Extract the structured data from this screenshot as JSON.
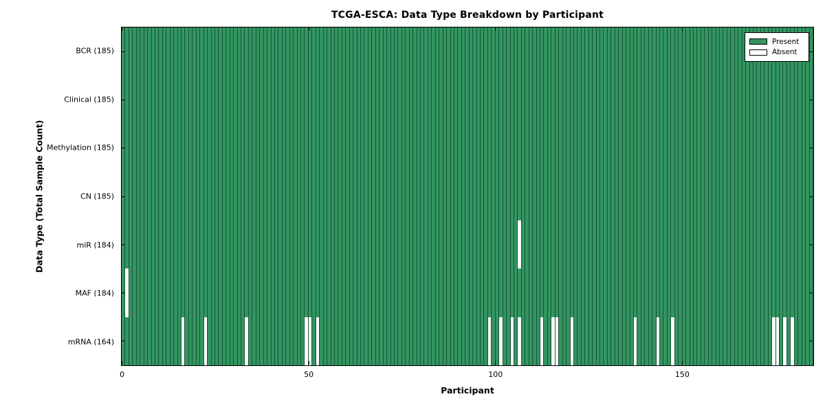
{
  "title": "TCGA-ESCA: Data Type Breakdown by Participant",
  "xlabel": "Participant",
  "ylabel": "Data Type (Total Sample Count)",
  "legend": {
    "present_label": "Present",
    "absent_label": "Absent"
  },
  "colors": {
    "present": "#339560",
    "absent": "#ffffff",
    "cell_border": "#175338",
    "frame": "#000000"
  },
  "chart_data": {
    "type": "heatmap",
    "title": "TCGA-ESCA: Data Type Breakdown by Participant",
    "xlabel": "Participant",
    "ylabel": "Data Type (Total Sample Count)",
    "legend": [
      "Present",
      "Absent"
    ],
    "legend_position": "upper right",
    "grid": false,
    "x_ticks": [
      0,
      50,
      100,
      150
    ],
    "x_range": [
      0,
      185
    ],
    "total_participants": 185,
    "rows": [
      {
        "name": "BCR",
        "present_count": 185,
        "absent_participants": []
      },
      {
        "name": "Clinical",
        "present_count": 185,
        "absent_participants": []
      },
      {
        "name": "Methylation",
        "present_count": 185,
        "absent_participants": []
      },
      {
        "name": "CN",
        "present_count": 185,
        "absent_participants": []
      },
      {
        "name": "miR",
        "present_count": 184,
        "absent_participants": [
          106
        ]
      },
      {
        "name": "MAF",
        "present_count": 184,
        "absent_participants": [
          1
        ]
      },
      {
        "name": "mRNA",
        "present_count": 164,
        "absent_participants": [
          16,
          22,
          33,
          49,
          50,
          52,
          98,
          101,
          104,
          106,
          112,
          115,
          116,
          120,
          137,
          143,
          147,
          174,
          175,
          177,
          179
        ]
      }
    ]
  }
}
